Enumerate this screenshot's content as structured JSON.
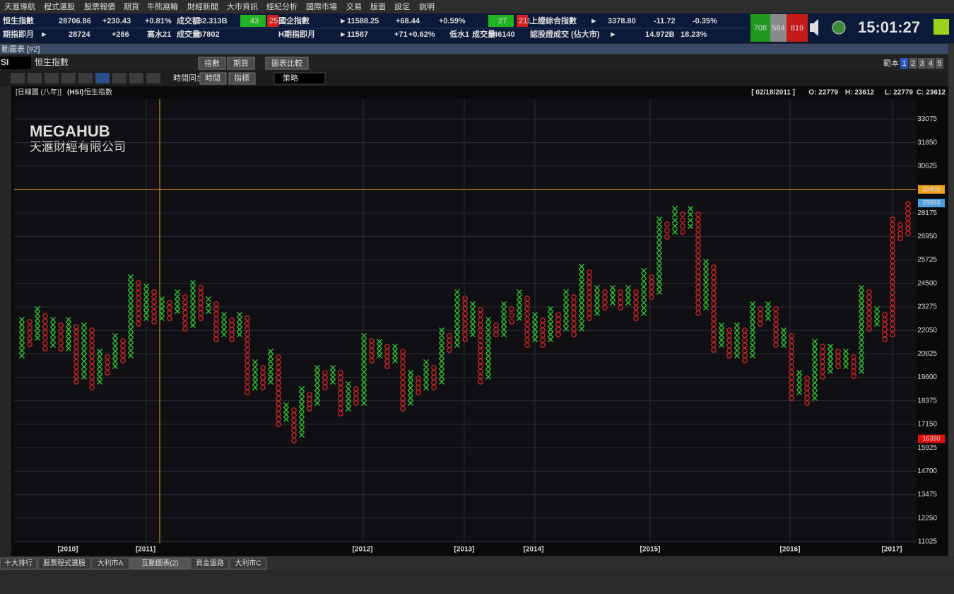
{
  "menu": [
    "天滙導航",
    "程式選股",
    "股票報價",
    "期貨",
    "牛熊窩輪",
    "財經新聞",
    "大市資訊",
    "經紀分析",
    "國際市場",
    "交易",
    "版面",
    "設定",
    "說明"
  ],
  "ticker": {
    "row1": [
      {
        "text": "恒生指數",
        "color": "#ffffff"
      },
      {
        "text": "28706.86",
        "color": "#ffffff"
      },
      {
        "text": "+230.43",
        "color": "#22dd22"
      },
      {
        "text": "+0.81%",
        "color": "#22dd22"
      },
      {
        "text": "成交額",
        "color": "#ffffff"
      },
      {
        "text": "82.313B",
        "color": "#ffffff"
      },
      {
        "text": "43",
        "color": "#000000",
        "bg": "#21b321"
      },
      {
        "text": "25",
        "color": "#000000",
        "bg": "#d32020"
      },
      {
        "text": "國企指數",
        "color": "#ffffff"
      },
      {
        "text": "►",
        "color": "#ffffff"
      },
      {
        "text": "11588.25",
        "color": "#ffffff"
      },
      {
        "text": "+68.44",
        "color": "#22dd22"
      },
      {
        "text": "+0.59%",
        "color": "#22dd22"
      },
      {
        "text": "27",
        "color": "#000000",
        "bg": "#21b321"
      },
      {
        "text": "211",
        "color": "#000000",
        "bg": "#d32020"
      },
      {
        "text": "上證綜合指數",
        "color": "#ffffff"
      },
      {
        "text": "►",
        "color": "#ffffff"
      },
      {
        "text": "3378.80",
        "color": "#ffffff"
      },
      {
        "text": "-11.72",
        "color": "#ff3030"
      },
      {
        "text": "-0.35%",
        "color": "#ff3030"
      }
    ],
    "row2": [
      {
        "text": "期指即月",
        "color": "#ffffff"
      },
      {
        "text": "►",
        "color": "#ffffff"
      },
      {
        "text": "28724",
        "color": "#ffffff"
      },
      {
        "text": "+266",
        "color": "#22dd22"
      },
      {
        "text": "高水21",
        "color": "#22dd22"
      },
      {
        "text": "成交量",
        "color": "#ffffff"
      },
      {
        "text": "67802",
        "color": "#ffffff"
      },
      {
        "text": "H期指即月",
        "color": "#ffffff"
      },
      {
        "text": "►",
        "color": "#ffffff"
      },
      {
        "text": "11587",
        "color": "#ffffff"
      },
      {
        "text": "+71",
        "color": "#22dd22"
      },
      {
        "text": "+0.62%",
        "color": "#22dd22"
      },
      {
        "text": "低水1",
        "color": "#ff3030"
      },
      {
        "text": "成交量",
        "color": "#ffffff"
      },
      {
        "text": "46140",
        "color": "#ffffff"
      },
      {
        "text": "認股證成交 (佔大市)",
        "color": "#ffffff"
      },
      {
        "text": "►",
        "color": "#ffffff"
      },
      {
        "text": "14.972B",
        "color": "#ffffff"
      },
      {
        "text": "18.23%",
        "color": "#ffffff"
      }
    ],
    "breadth": [
      {
        "text": "708",
        "bg": "#1f9a1f"
      },
      {
        "text": "584",
        "bg": "#8a8a8a"
      },
      {
        "text": "819",
        "bg": "#c41a1a"
      }
    ],
    "clock": "15:01:27"
  },
  "window": {
    "title": "動圖表 [#2]",
    "symbol": "SI",
    "name": "恒生指數",
    "buttons": [
      "指數",
      "期貨",
      "圖表比較"
    ],
    "sync": "時間同步",
    "tools": [
      "時間",
      "指標"
    ],
    "strategy": "策略",
    "template": "範本",
    "pages": [
      "1",
      "2",
      "3",
      "4",
      "5"
    ]
  },
  "watermark": {
    "brand": "MEGAHUB",
    "company": "天滙財經有限公司"
  },
  "tabs": [
    "十大排行",
    "股票程式選股",
    "大利市A",
    "互動圖表(2)",
    "資金盤路",
    "大利市C"
  ],
  "chart_data": {
    "type": "point-and-figure",
    "period": "[日線圖 (八年)]",
    "code": "(HSI)",
    "title": "恒生指數",
    "info": [
      "[ 02/18/2011 ]",
      "O: 22779",
      "H: 23612",
      "L: 22779",
      "C: 23612"
    ],
    "column_types": [
      "X",
      "O",
      "X",
      "O",
      "X",
      "O",
      "X",
      "O",
      "X",
      "O",
      "X",
      "O",
      "X",
      "O",
      "X",
      "O",
      "X",
      "O",
      "X",
      "O",
      "X",
      "O",
      "X",
      "O",
      "X",
      "O",
      "X",
      "O",
      "X",
      "O",
      "X",
      "O",
      "X",
      "O",
      "X",
      "O",
      "X",
      "O",
      "X",
      "O",
      "X",
      "O",
      "X",
      "O",
      "X",
      "O",
      "X",
      "O",
      "X",
      "O",
      "X",
      "O",
      "X",
      "O",
      "X",
      "O",
      "X",
      "O",
      "X",
      "O",
      "X",
      "O",
      "X",
      "O",
      "X",
      "O",
      "X",
      "O",
      "X",
      "O",
      "X",
      "O",
      "X",
      "O",
      "X",
      "O",
      "X",
      "O",
      "X",
      "O",
      "X",
      "O",
      "X",
      "O",
      "X",
      "O",
      "X",
      "O",
      "X",
      "O",
      "X",
      "O",
      "X",
      "O",
      "X",
      "O",
      "X",
      "O",
      "X",
      "O",
      "X",
      "O",
      "X",
      "O",
      "X",
      "O",
      "X",
      "O",
      "X",
      "O",
      "X"
    ],
    "lows": [
      20730,
      21320,
      21652,
      21099,
      21283,
      21099,
      21099,
      19364,
      19623,
      19069,
      19364,
      19844,
      20176,
      20471,
      20730,
      22390,
      22685,
      22501,
      22685,
      22685,
      23054,
      22132,
      22316,
      22685,
      23054,
      21578,
      21837,
      21578,
      21837,
      18811,
      19069,
      19069,
      19364,
      17150,
      17409,
      16302,
      16597,
      17962,
      18257,
      19069,
      19364,
      17704,
      17962,
      18257,
      18257,
      20471,
      20730,
      20176,
      20471,
      17962,
      18257,
      18811,
      19069,
      19069,
      19364,
      21025,
      21283,
      21578,
      21837,
      19364,
      19623,
      21837,
      21837,
      22501,
      22685,
      21283,
      21578,
      21283,
      21578,
      21837,
      22132,
      21837,
      22132,
      22685,
      22944,
      23239,
      23497,
      23239,
      23497,
      22685,
      22944,
      23792,
      24051,
      26929,
      27187,
      27187,
      27482,
      22944,
      23239,
      21025,
      21283,
      20730,
      20730,
      20471,
      20730,
      22390,
      22685,
      21283,
      21283,
      18516,
      18811,
      18257,
      18516,
      19623,
      19918,
      20176,
      20176,
      19660,
      19918,
      22132,
      22390,
      21578,
      21837,
      26855,
      27113
    ],
    "highs": [
      22612,
      22501,
      23165,
      22796,
      22612,
      22316,
      22612,
      22243,
      22316,
      22058,
      20951,
      20656,
      21763,
      21505,
      24826,
      24530,
      24346,
      24051,
      23682,
      23497,
      24051,
      23792,
      24530,
      24272,
      23682,
      23423,
      22870,
      22575,
      22870,
      22685,
      20398,
      20102,
      20951,
      20656,
      18147,
      17888,
      18995,
      18700,
      20102,
      19844,
      20102,
      19844,
      19254,
      18995,
      21763,
      21505,
      21468,
      21209,
      21209,
      20951,
      19844,
      19549,
      20398,
      20102,
      22058,
      21763,
      24051,
      23719,
      23423,
      23128,
      22612,
      22316,
      23423,
      23165,
      24051,
      23719,
      22870,
      22575,
      23165,
      22870,
      24051,
      23792,
      25379,
      25084,
      24272,
      24051,
      24272,
      24051,
      24272,
      24051,
      25158,
      24826,
      27851,
      27593,
      28405,
      28110,
      28405,
      28110,
      25637,
      25342,
      22316,
      22058,
      22316,
      22058,
      23423,
      23165,
      23423,
      23165,
      22058,
      21763,
      19844,
      19549,
      21468,
      21209,
      21209,
      20951,
      20951,
      20656,
      24272,
      24051,
      23165,
      22870,
      27851,
      27556,
      28663
    ],
    "x_labels": [
      "[2010]",
      "[2011]",
      "[2012]",
      "[2013]",
      "[2014]",
      "[2015]",
      "[2016]",
      "[2017]"
    ],
    "ylim": [
      10950,
      34124
    ],
    "yticks": [
      11025,
      12250,
      13475,
      14700,
      15925,
      17150,
      18375,
      19600,
      20825,
      22050,
      23275,
      24500,
      25725,
      26950,
      28175,
      30625,
      31850,
      33075
    ],
    "markers": [
      {
        "value": 29405,
        "color": "#f0a020"
      },
      {
        "value": 28693,
        "color": "#4aa0e0"
      },
      {
        "value": 16390,
        "color": "#e01010"
      }
    ],
    "x_color": "#2fd02f",
    "o_color": "#d42424",
    "grid": true
  }
}
